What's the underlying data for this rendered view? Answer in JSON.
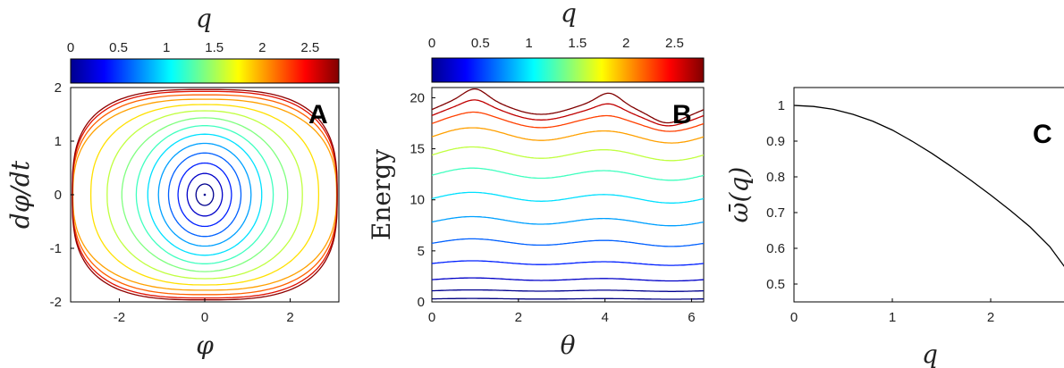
{
  "figure": {
    "panel_a": {
      "letter": "A",
      "colorbar": {
        "label": "q",
        "ticks": [
          "0",
          "0.5",
          "1",
          "1.5",
          "2",
          "2.5"
        ],
        "range": [
          0,
          2.8
        ],
        "colormap": "jet"
      },
      "xlabel": "φ",
      "ylabel": "dφ/dt",
      "xticks": [
        "-2",
        "0",
        "2"
      ],
      "yticks": [
        "-2",
        "-1",
        "0",
        "1",
        "2"
      ]
    },
    "panel_b": {
      "letter": "B",
      "colorbar": {
        "label": "q",
        "ticks": [
          "0",
          "0.5",
          "1",
          "1.5",
          "2",
          "2.5"
        ],
        "range": [
          0,
          2.8
        ],
        "colormap": "jet"
      },
      "xlabel": "θ",
      "ylabel": "Energy",
      "xticks": [
        "0",
        "2",
        "4",
        "6"
      ],
      "yticks": [
        "0",
        "5",
        "10",
        "15",
        "20"
      ]
    },
    "panel_c": {
      "letter": "C",
      "xlabel": "q",
      "ylabel": "ω̄(q)",
      "xticks": [
        "0",
        "1",
        "2"
      ],
      "yticks": [
        "0.5",
        "0.6",
        "0.7",
        "0.8",
        "0.9",
        "1"
      ]
    }
  },
  "chart_data": [
    {
      "type": "line",
      "panel": "A",
      "title": "",
      "xlabel": "φ",
      "ylabel": "dφ/dt",
      "xlim": [
        -3.14,
        3.14
      ],
      "ylim": [
        -2,
        2
      ],
      "color_by": "q",
      "series": [
        {
          "q": 0.2,
          "color": "#00008f"
        },
        {
          "q": 0.4,
          "color": "#0000c8"
        },
        {
          "q": 0.6,
          "color": "#0020ff"
        },
        {
          "q": 0.8,
          "color": "#0060ff"
        },
        {
          "q": 1.0,
          "color": "#00a0ff"
        },
        {
          "q": 1.2,
          "color": "#00e0ff"
        },
        {
          "q": 1.4,
          "color": "#40ffbf"
        },
        {
          "q": 1.6,
          "color": "#80ff80"
        },
        {
          "q": 1.8,
          "color": "#c0ff40"
        },
        {
          "q": 2.0,
          "color": "#ffe000"
        },
        {
          "q": 2.2,
          "color": "#ffa000"
        },
        {
          "q": 2.4,
          "color": "#ff6000"
        },
        {
          "q": 2.6,
          "color": "#e01000"
        },
        {
          "q": 2.75,
          "color": "#8f0000"
        }
      ]
    },
    {
      "type": "line",
      "panel": "B",
      "title": "",
      "xlabel": "θ",
      "ylabel": "Energy",
      "xlim": [
        0,
        6.28
      ],
      "ylim": [
        0,
        21
      ],
      "color_by": "q",
      "series": [
        {
          "q": 0.05,
          "base": 0.3,
          "amp": 0.05,
          "color": "#000080"
        },
        {
          "q": 0.2,
          "base": 1.1,
          "amp": 0.1,
          "color": "#00008f"
        },
        {
          "q": 0.4,
          "base": 2.2,
          "amp": 0.2,
          "color": "#0000c8"
        },
        {
          "q": 0.6,
          "base": 3.8,
          "amp": 0.3,
          "color": "#0020ff"
        },
        {
          "q": 0.8,
          "base": 5.8,
          "amp": 0.5,
          "color": "#0060ff"
        },
        {
          "q": 1.0,
          "base": 7.9,
          "amp": 0.6,
          "color": "#00a0ff"
        },
        {
          "q": 1.2,
          "base": 10.2,
          "amp": 0.7,
          "color": "#00e0ff"
        },
        {
          "q": 1.4,
          "base": 12.5,
          "amp": 0.8,
          "color": "#40ffbf"
        },
        {
          "q": 1.6,
          "base": 14.5,
          "amp": 0.9,
          "color": "#c0ff40"
        },
        {
          "q": 2.0,
          "base": 16.3,
          "amp": 1.0,
          "color": "#ffa000"
        },
        {
          "q": 2.3,
          "base": 17.6,
          "amp": 1.1,
          "color": "#ff4000"
        },
        {
          "q": 2.5,
          "base": 18.4,
          "amp": 1.2,
          "color": "#c00000"
        },
        {
          "q": 2.75,
          "base": 19.0,
          "amp": 1.3,
          "color": "#800000"
        }
      ]
    },
    {
      "type": "line",
      "panel": "C",
      "title": "",
      "xlabel": "q",
      "ylabel": "ω̄(q)",
      "xlim": [
        0,
        2.8
      ],
      "ylim": [
        0.45,
        1.05
      ],
      "series": [
        {
          "color": "#000000",
          "x": [
            0,
            0.2,
            0.4,
            0.6,
            0.8,
            1.0,
            1.2,
            1.4,
            1.6,
            1.8,
            2.0,
            2.2,
            2.4,
            2.6,
            2.8
          ],
          "y": [
            1.0,
            0.997,
            0.989,
            0.975,
            0.956,
            0.931,
            0.9,
            0.866,
            0.829,
            0.79,
            0.749,
            0.706,
            0.66,
            0.605,
            0.53
          ]
        }
      ]
    }
  ]
}
